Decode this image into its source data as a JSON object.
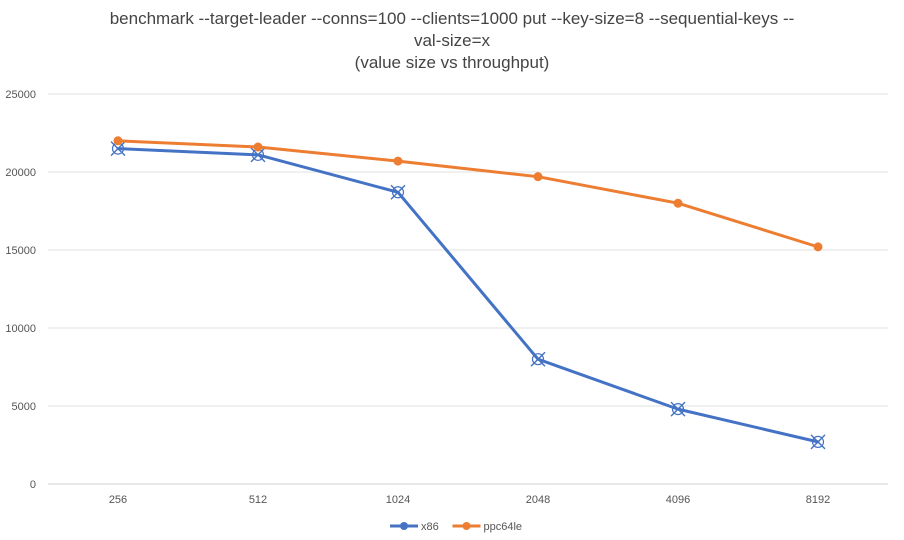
{
  "chart_data": {
    "type": "line",
    "title": [
      "benchmark --target-leader  --conns=100 --clients=1000 put --key-size=8 --sequential-keys --",
      "val-size=x",
      "(value size vs throughput)"
    ],
    "xlabel": "",
    "ylabel": "",
    "categories": [
      "256",
      "512",
      "1024",
      "2048",
      "4096",
      "8192"
    ],
    "ylim": [
      0,
      25000
    ],
    "yticks": [
      0,
      5000,
      10000,
      15000,
      20000,
      25000
    ],
    "grid": true,
    "legend_position": "bottom",
    "series": [
      {
        "name": "x86",
        "color": "#4472C4",
        "marker": "cross",
        "values": [
          21500,
          21100,
          18700,
          8000,
          4800,
          2700
        ]
      },
      {
        "name": "ppc64le",
        "color": "#ED7D31",
        "marker": "circle",
        "values": [
          22000,
          21600,
          20700,
          19700,
          18000,
          15200
        ]
      }
    ]
  }
}
